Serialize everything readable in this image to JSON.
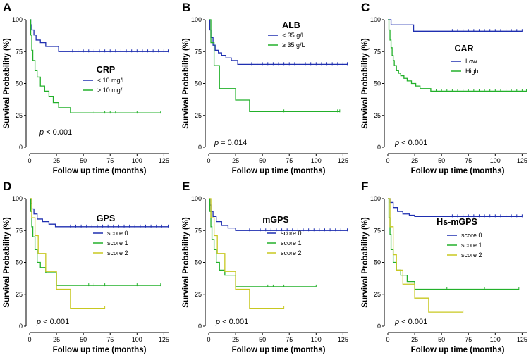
{
  "colors": {
    "blue": "#1f2fb0",
    "green": "#22b02a",
    "yellow": "#c8c821",
    "axis": "#000000"
  },
  "chart_data": [
    {
      "type": "line",
      "letter": "A",
      "title": "CRP",
      "xlabel": "Follow up time (months)",
      "ylabel": "Survival Probability (%)",
      "xlim": [
        0,
        130
      ],
      "ylim": [
        0,
        100
      ],
      "xticks": [
        "0",
        "25",
        "50",
        "75",
        "100",
        "125"
      ],
      "yticks": [
        "0",
        "25",
        "50",
        "75",
        "100"
      ],
      "pvalue": {
        "label": "p",
        "value": "< 0.001"
      },
      "legend_position": "center-right",
      "series": [
        {
          "name": "≤  10 mg/L",
          "color": "blue",
          "x": [
            0,
            1,
            2,
            4,
            6,
            10,
            15,
            20,
            27,
            40,
            60,
            80,
            100,
            130
          ],
          "y": [
            100,
            96,
            92,
            88,
            84,
            82,
            79,
            79,
            75,
            75,
            75,
            75,
            75,
            75
          ],
          "censor": [
            40,
            45,
            50,
            55,
            60,
            65,
            70,
            75,
            80,
            85,
            90,
            95,
            100,
            105,
            110,
            115,
            120,
            125,
            129
          ]
        },
        {
          "name": "> 10 mg/L",
          "color": "green",
          "x": [
            0,
            1,
            2,
            3,
            5,
            7,
            10,
            14,
            18,
            22,
            27,
            38,
            122
          ],
          "y": [
            100,
            88,
            76,
            68,
            60,
            55,
            48,
            44,
            40,
            35,
            31,
            27,
            27
          ],
          "censor": [
            60,
            70,
            75,
            80,
            100,
            122
          ]
        }
      ]
    },
    {
      "type": "line",
      "letter": "B",
      "title": "ALB",
      "xlabel": "Follow up time (months)",
      "ylabel": "Survival Probability (%)",
      "xlim": [
        0,
        130
      ],
      "ylim": [
        0,
        100
      ],
      "xticks": [
        "0",
        "25",
        "50",
        "75",
        "100",
        "125"
      ],
      "yticks": [
        "0",
        "25",
        "50",
        "75",
        "100"
      ],
      "pvalue": {
        "label": "p",
        "value": "= 0.014"
      },
      "legend_position": "top-right",
      "series": [
        {
          "name": "< 35 g/L",
          "color": "blue",
          "x": [
            0,
            1,
            2,
            4,
            6,
            9,
            12,
            16,
            21,
            27,
            40,
            130
          ],
          "y": [
            100,
            92,
            86,
            80,
            76,
            74,
            72,
            70,
            68,
            65,
            65,
            65
          ],
          "censor": [
            40,
            45,
            50,
            55,
            60,
            65,
            70,
            75,
            80,
            85,
            90,
            95,
            100,
            105,
            110,
            115,
            120,
            125,
            129
          ]
        },
        {
          "name": "≥  35 g/L",
          "color": "green",
          "x": [
            0,
            2,
            5,
            10,
            15,
            25,
            38,
            122
          ],
          "y": [
            100,
            82,
            64,
            46,
            46,
            37,
            28,
            28
          ],
          "censor": [
            70,
            120,
            122
          ]
        }
      ]
    },
    {
      "type": "line",
      "letter": "C",
      "title": "CAR",
      "xlabel": "Follow up time (months)",
      "ylabel": "Survival Probability (%)",
      "xlim": [
        0,
        130
      ],
      "ylim": [
        0,
        100
      ],
      "xticks": [
        "0",
        "25",
        "50",
        "75",
        "100",
        "125"
      ],
      "yticks": [
        "0",
        "25",
        "50",
        "75",
        "100"
      ],
      "pvalue": {
        "label": "p",
        "value": "< 0.001"
      },
      "legend_position": "center-right",
      "series": [
        {
          "name": "Low",
          "color": "blue",
          "x": [
            0,
            3,
            24,
            125
          ],
          "y": [
            100,
            96,
            91,
            91
          ],
          "censor": [
            60,
            65,
            70,
            75,
            80,
            85,
            90,
            95,
            100,
            105,
            110,
            115,
            120,
            125
          ]
        },
        {
          "name": "High",
          "color": "green",
          "x": [
            0,
            1,
            2,
            3,
            4,
            5,
            6,
            8,
            10,
            12,
            15,
            18,
            22,
            26,
            30,
            40,
            130
          ],
          "y": [
            100,
            92,
            84,
            78,
            72,
            68,
            64,
            60,
            58,
            56,
            54,
            52,
            50,
            48,
            46,
            44,
            44
          ],
          "censor": [
            40,
            45,
            50,
            55,
            60,
            65,
            70,
            75,
            80,
            85,
            90,
            95,
            100,
            105,
            110,
            115,
            120,
            125,
            129
          ]
        }
      ]
    },
    {
      "type": "line",
      "letter": "D",
      "title": "GPS",
      "xlabel": "Follow up time (months)",
      "ylabel": "Survival Probability (%)",
      "xlim": [
        0,
        130
      ],
      "ylim": [
        0,
        100
      ],
      "xticks": [
        "0",
        "25",
        "50",
        "75",
        "100",
        "125"
      ],
      "yticks": [
        "0",
        "25",
        "50",
        "75",
        "100"
      ],
      "pvalue": {
        "label": "p",
        "value": "< 0.001"
      },
      "legend_position": "center-right",
      "series": [
        {
          "name": "score 0",
          "color": "blue",
          "x": [
            0,
            1,
            2,
            4,
            7,
            12,
            18,
            24,
            130
          ],
          "y": [
            100,
            96,
            92,
            88,
            84,
            82,
            80,
            78,
            78
          ],
          "censor": [
            38,
            43,
            48,
            53,
            58,
            63,
            68,
            73,
            78,
            83,
            88,
            93,
            98,
            103,
            108,
            113,
            118,
            123,
            129
          ]
        },
        {
          "name": "score 1",
          "color": "green",
          "x": [
            0,
            1,
            2,
            3,
            5,
            7,
            10,
            15,
            25,
            122
          ],
          "y": [
            100,
            90,
            78,
            70,
            60,
            50,
            46,
            42,
            32,
            32
          ],
          "censor": [
            55,
            60,
            70,
            100,
            122
          ]
        },
        {
          "name": "score 2",
          "color": "yellow",
          "x": [
            0,
            2,
            5,
            8,
            15,
            25,
            38,
            70
          ],
          "y": [
            100,
            85,
            71,
            57,
            43,
            29,
            14,
            14
          ],
          "censor": [
            70
          ]
        }
      ]
    },
    {
      "type": "line",
      "letter": "E",
      "title": "mGPS",
      "xlabel": "Follow up time (months)",
      "ylabel": "Survival Probability (%)",
      "xlim": [
        0,
        130
      ],
      "ylim": [
        0,
        100
      ],
      "xticks": [
        "0",
        "25",
        "50",
        "75",
        "100",
        "125"
      ],
      "yticks": [
        "0",
        "25",
        "50",
        "75",
        "100"
      ],
      "pvalue": {
        "label": "p",
        "value": "< 0.001"
      },
      "legend_position": "center-right",
      "series": [
        {
          "name": "score 0",
          "color": "blue",
          "x": [
            0,
            1,
            2,
            4,
            7,
            12,
            18,
            25,
            130
          ],
          "y": [
            100,
            95,
            90,
            86,
            82,
            79,
            77,
            75,
            75
          ],
          "censor": [
            38,
            43,
            48,
            53,
            58,
            63,
            68,
            73,
            78,
            83,
            88,
            93,
            98,
            103,
            108,
            113,
            118,
            123,
            129
          ]
        },
        {
          "name": "score 1",
          "color": "green",
          "x": [
            0,
            1,
            2,
            3,
            5,
            7,
            10,
            15,
            25,
            100
          ],
          "y": [
            100,
            90,
            78,
            68,
            60,
            50,
            44,
            40,
            31,
            31
          ],
          "censor": [
            55,
            60,
            70,
            100
          ]
        },
        {
          "name": "score 2",
          "color": "yellow",
          "x": [
            0,
            2,
            5,
            8,
            15,
            25,
            38,
            70
          ],
          "y": [
            100,
            85,
            71,
            57,
            43,
            29,
            14,
            14
          ],
          "censor": [
            70
          ]
        }
      ]
    },
    {
      "type": "line",
      "letter": "F",
      "title": "Hs-mGPS",
      "xlabel": "Follow up time (months)",
      "ylabel": "Survival Probability (%)",
      "xlim": [
        0,
        130
      ],
      "ylim": [
        0,
        100
      ],
      "xticks": [
        "0",
        "25",
        "50",
        "75",
        "100",
        "125"
      ],
      "yticks": [
        "0",
        "25",
        "50",
        "75",
        "100"
      ],
      "pvalue": {
        "label": "p",
        "value": "< 0.001"
      },
      "legend_position": "center-right",
      "series": [
        {
          "name": "score 0",
          "color": "blue",
          "x": [
            0,
            2,
            5,
            9,
            14,
            20,
            25,
            125
          ],
          "y": [
            100,
            97,
            93,
            90,
            88,
            87,
            86,
            86
          ],
          "censor": [
            60,
            65,
            70,
            75,
            80,
            85,
            90,
            95,
            100,
            105,
            110,
            115,
            120,
            125
          ]
        },
        {
          "name": "score 1",
          "color": "green",
          "x": [
            0,
            1,
            2,
            3,
            5,
            8,
            12,
            18,
            25,
            122
          ],
          "y": [
            100,
            85,
            72,
            60,
            50,
            44,
            40,
            35,
            29,
            29
          ],
          "censor": [
            55,
            90,
            122
          ]
        },
        {
          "name": "score 2",
          "color": "yellow",
          "x": [
            0,
            2,
            5,
            8,
            14,
            25,
            38,
            70
          ],
          "y": [
            100,
            78,
            56,
            44,
            33,
            22,
            11,
            11
          ],
          "censor": [
            70
          ]
        }
      ]
    }
  ]
}
